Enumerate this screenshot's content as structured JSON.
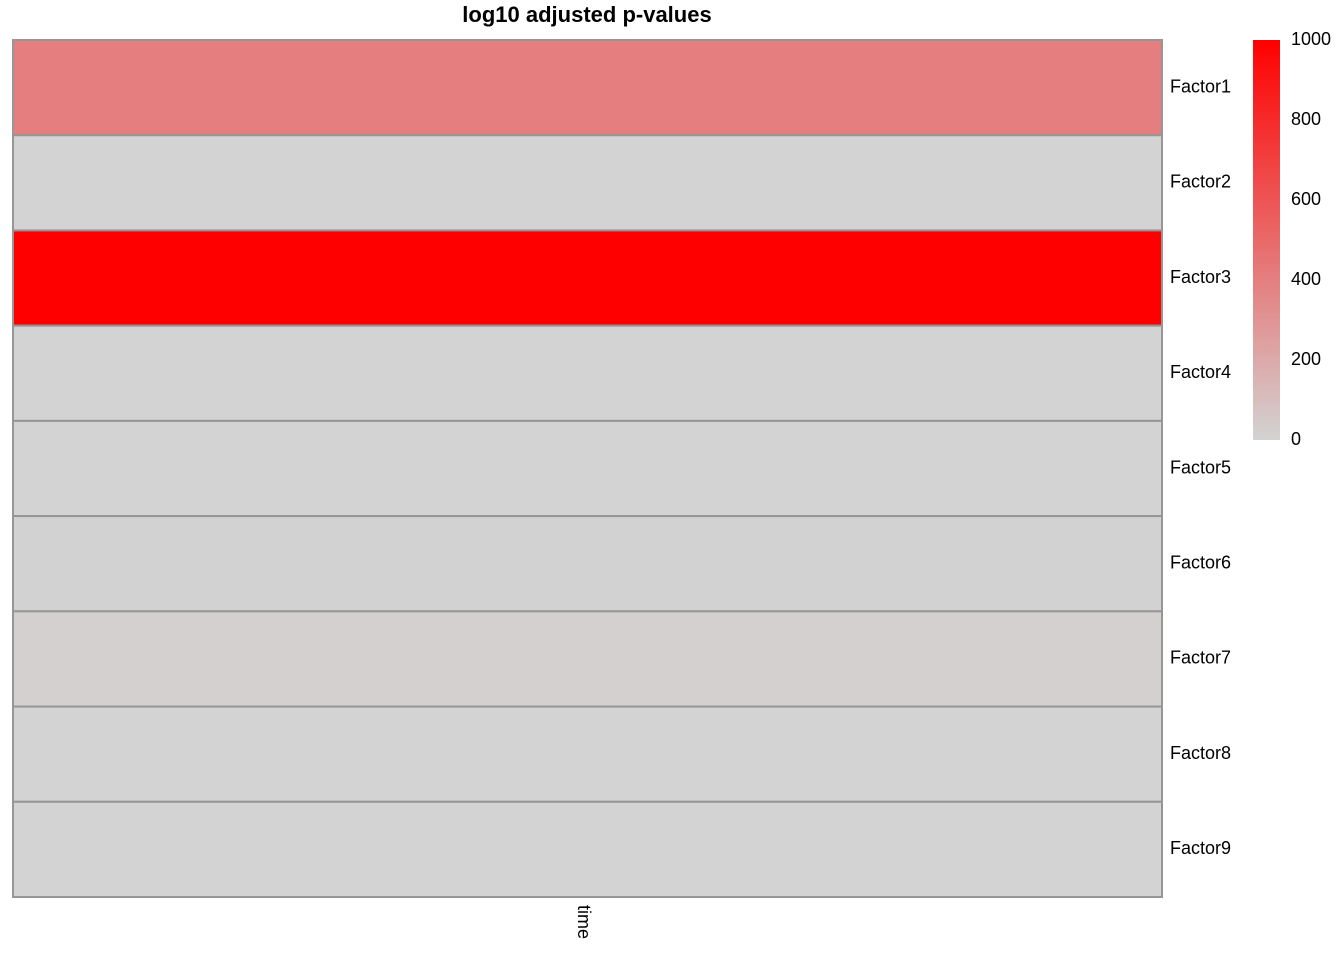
{
  "chart_data": {
    "type": "heatmap",
    "title": "log10 adjusted p-values",
    "columns": [
      "time"
    ],
    "rows": [
      "Factor1",
      "Factor2",
      "Factor3",
      "Factor4",
      "Factor5",
      "Factor6",
      "Factor7",
      "Factor8",
      "Factor9"
    ],
    "values": [
      [
        400
      ],
      [
        0
      ],
      [
        1000
      ],
      [
        0
      ],
      [
        0
      ],
      [
        5
      ],
      [
        15
      ],
      [
        0
      ],
      [
        0
      ]
    ],
    "legend": {
      "min": 0,
      "max": 1000,
      "ticks": [
        "1000",
        "800",
        "600",
        "400",
        "200",
        "0"
      ],
      "low_color": "#d3d3d3",
      "high_color": "#ff0000",
      "placement": "right"
    },
    "cell_border_color": "#969696"
  }
}
